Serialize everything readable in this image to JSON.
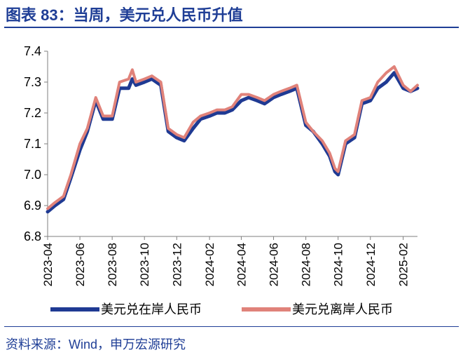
{
  "title": "图表 83：当周，美元兑人民币升值",
  "source": "资料来源：Wind，申万宏源研究",
  "colors": {
    "title": "#1f3e96",
    "onshore": "#1f3a93",
    "offshore": "#e0827a",
    "axis": "#7f7f7f"
  },
  "chart_data": {
    "type": "line",
    "title": "",
    "xlabel": "",
    "ylabel": "",
    "ylim": [
      6.8,
      7.4
    ],
    "yticks": [
      "6.8",
      "6.9",
      "7.0",
      "7.1",
      "7.2",
      "7.3",
      "7.4"
    ],
    "xlim": [
      "2023-04-01",
      "2025-02-28"
    ],
    "xticks": [
      "2023-04",
      "2023-06",
      "2023-08",
      "2023-10",
      "2023-12",
      "2024-02",
      "2024-04",
      "2024-06",
      "2024-08",
      "2024-10",
      "2024-12",
      "2025-02"
    ],
    "grid": false,
    "legend_position": "bottom",
    "x": [
      "2023-04-01",
      "2023-04-15",
      "2023-05-01",
      "2023-05-15",
      "2023-06-01",
      "2023-06-15",
      "2023-07-01",
      "2023-07-15",
      "2023-08-01",
      "2023-08-15",
      "2023-09-01",
      "2023-09-08",
      "2023-09-15",
      "2023-10-01",
      "2023-10-15",
      "2023-11-01",
      "2023-11-15",
      "2023-12-01",
      "2023-12-15",
      "2024-01-01",
      "2024-01-15",
      "2024-02-01",
      "2024-02-15",
      "2024-03-01",
      "2024-03-15",
      "2024-04-01",
      "2024-04-15",
      "2024-05-01",
      "2024-05-15",
      "2024-06-01",
      "2024-06-15",
      "2024-07-01",
      "2024-07-15",
      "2024-08-01",
      "2024-08-15",
      "2024-09-01",
      "2024-09-15",
      "2024-09-25",
      "2024-10-01",
      "2024-10-15",
      "2024-11-01",
      "2024-11-15",
      "2024-12-01",
      "2024-12-15",
      "2024-12-31",
      "2025-01-15",
      "2025-02-01",
      "2025-02-15",
      "2025-02-28"
    ],
    "series": [
      {
        "name": "美元兑在岸人民币",
        "values": [
          6.88,
          6.9,
          6.92,
          6.99,
          7.08,
          7.14,
          7.24,
          7.18,
          7.18,
          7.28,
          7.28,
          7.31,
          7.29,
          7.3,
          7.31,
          7.29,
          7.14,
          7.12,
          7.11,
          7.15,
          7.18,
          7.19,
          7.2,
          7.2,
          7.21,
          7.24,
          7.25,
          7.24,
          7.23,
          7.25,
          7.26,
          7.27,
          7.28,
          7.16,
          7.14,
          7.1,
          7.06,
          7.01,
          7.0,
          7.1,
          7.12,
          7.23,
          7.24,
          7.28,
          7.3,
          7.33,
          7.28,
          7.27,
          7.28
        ]
      },
      {
        "name": "美元兑离岸人民币",
        "values": [
          6.89,
          6.91,
          6.93,
          7.0,
          7.1,
          7.15,
          7.25,
          7.19,
          7.19,
          7.3,
          7.31,
          7.34,
          7.3,
          7.31,
          7.32,
          7.3,
          7.15,
          7.13,
          7.12,
          7.17,
          7.19,
          7.2,
          7.21,
          7.21,
          7.22,
          7.26,
          7.26,
          7.25,
          7.24,
          7.26,
          7.27,
          7.28,
          7.29,
          7.17,
          7.14,
          7.11,
          7.07,
          7.02,
          7.01,
          7.11,
          7.13,
          7.24,
          7.25,
          7.3,
          7.33,
          7.35,
          7.29,
          7.27,
          7.29
        ]
      }
    ]
  }
}
